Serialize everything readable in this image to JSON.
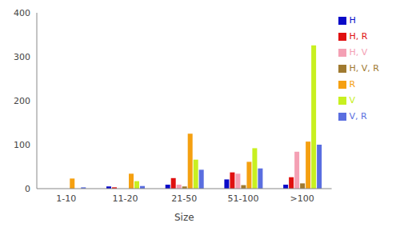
{
  "chart_data": {
    "type": "bar",
    "x_label": "Size",
    "categories": [
      "1-10",
      "11-20",
      "21-50",
      "51-100",
      ">100"
    ],
    "series": [
      {
        "name": "H",
        "color": "#0a0ac8",
        "values": [
          0,
          5,
          9,
          21,
          9
        ]
      },
      {
        "name": "H, R",
        "color": "#e01010",
        "values": [
          0,
          3,
          24,
          37,
          26
        ]
      },
      {
        "name": "H, V",
        "color": "#f4a0b4",
        "values": [
          0,
          0,
          9,
          34,
          84
        ]
      },
      {
        "name": "H, V, R",
        "color": "#a07a30",
        "values": [
          0,
          0,
          5,
          8,
          12
        ]
      },
      {
        "name": "R",
        "color": "#f5a010",
        "values": [
          23,
          34,
          125,
          61,
          107
        ]
      },
      {
        "name": "V",
        "color": "#c8f020",
        "values": [
          0,
          17,
          66,
          92,
          326
        ]
      },
      {
        "name": "V, R",
        "color": "#5a6ee0",
        "values": [
          3,
          6,
          43,
          46,
          100
        ]
      }
    ],
    "ylim": [
      0,
      400
    ],
    "yticks": [
      0,
      100,
      200,
      300,
      400
    ],
    "grid": false,
    "legend": "upper right"
  }
}
